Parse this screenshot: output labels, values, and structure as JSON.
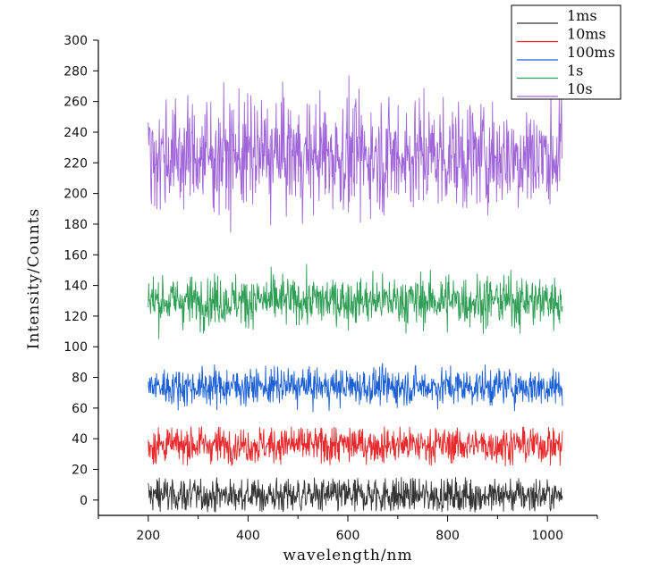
{
  "chart_data": {
    "type": "line",
    "xlabel": "wavelength/nm",
    "ylabel": "Intensity/Counts",
    "xlim": [
      100,
      1100
    ],
    "ylim": [
      -10,
      300
    ],
    "x_ticks": [
      200,
      400,
      600,
      800,
      1000
    ],
    "y_ticks": [
      0,
      20,
      40,
      60,
      80,
      100,
      120,
      140,
      160,
      180,
      200,
      220,
      240,
      260,
      280,
      300
    ],
    "x_range": [
      200,
      1030
    ],
    "grid": false,
    "legend_position": "top-right",
    "series": [
      {
        "name": "1ms",
        "color": "#333333",
        "mean": 3,
        "noise": 6,
        "min": -8,
        "max": 15
      },
      {
        "name": "10ms",
        "color": "#e8282b",
        "mean": 36,
        "noise": 6,
        "min": 22,
        "max": 48
      },
      {
        "name": "100ms",
        "color": "#1a5fd6",
        "mean": 74,
        "noise": 6,
        "min": 55,
        "max": 90
      },
      {
        "name": "1s",
        "color": "#2e9e55",
        "mean": 130,
        "noise": 8,
        "min": 100,
        "max": 155
      },
      {
        "name": "10s",
        "color": "#a066d9",
        "mean": 225,
        "noise": 18,
        "min": 150,
        "max": 300
      }
    ]
  }
}
